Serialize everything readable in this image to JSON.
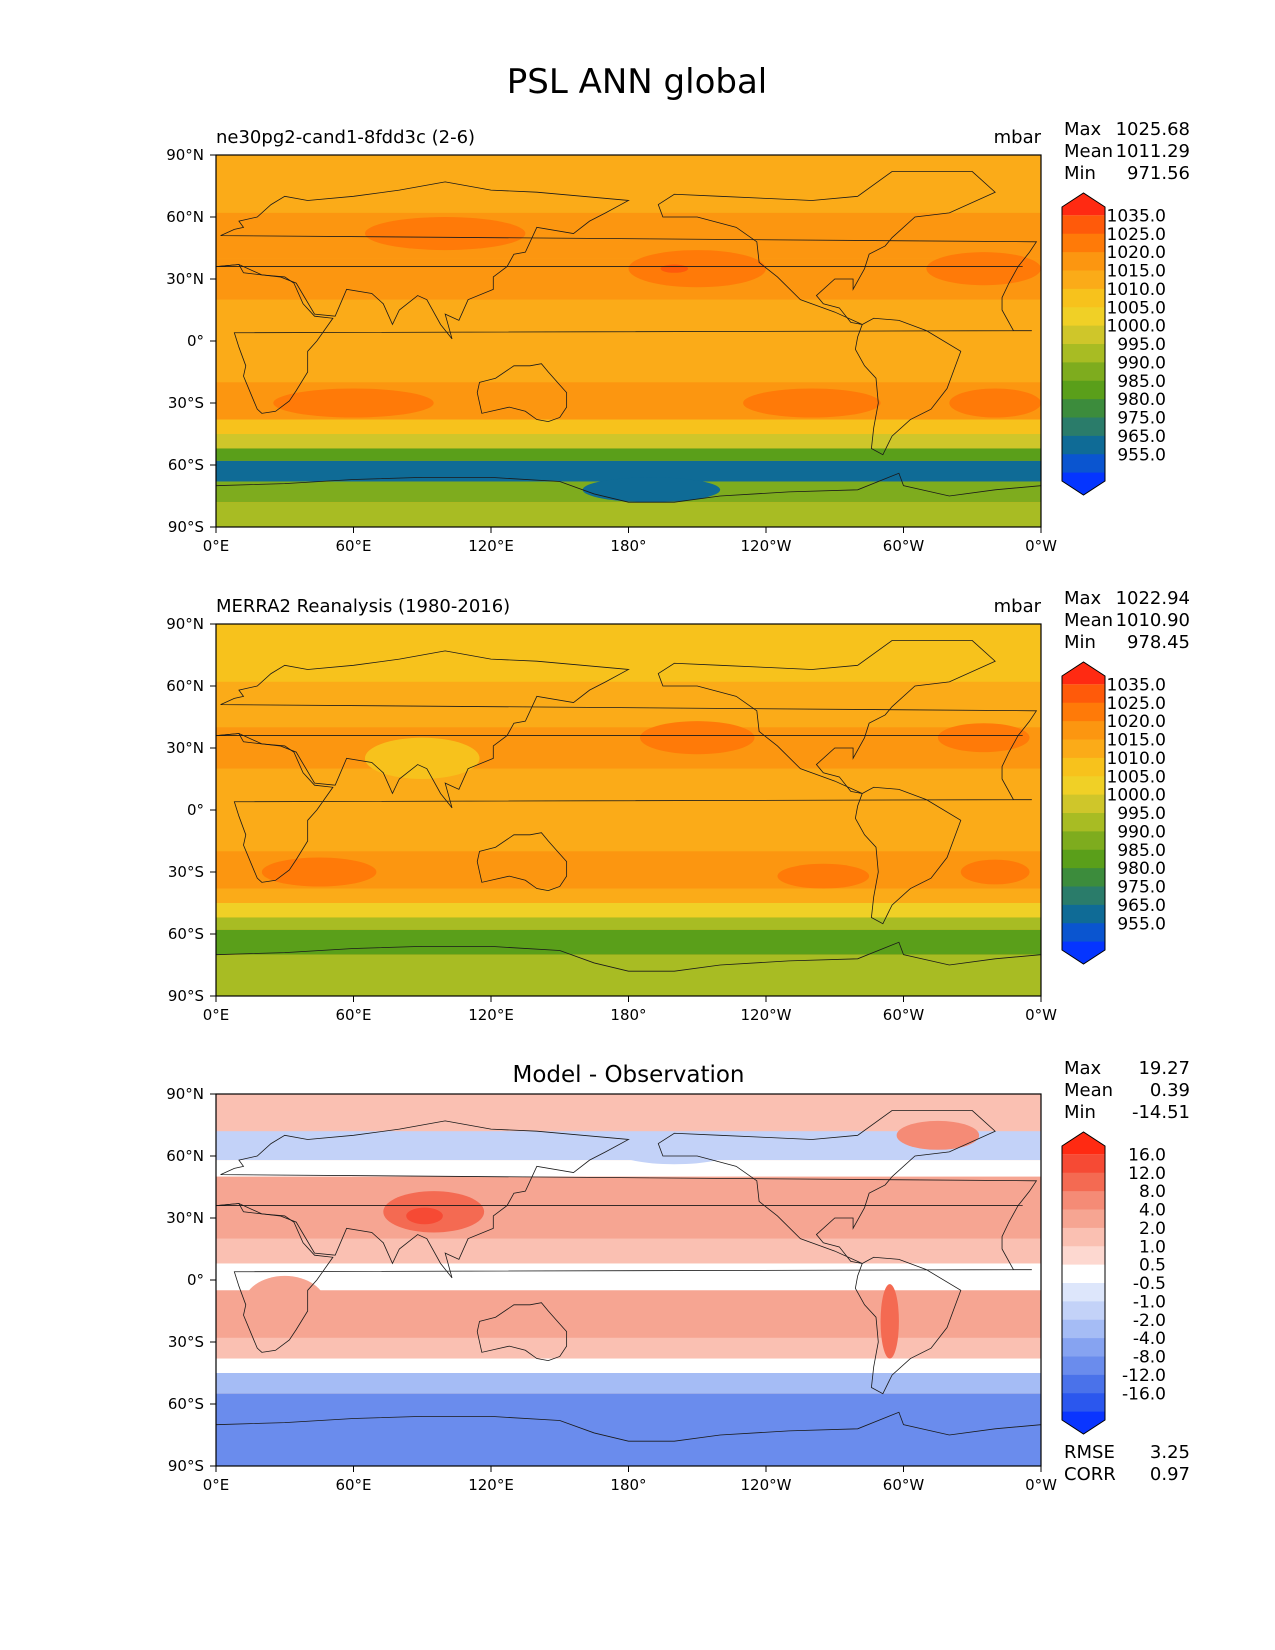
{
  "figure_title": "PSL ANN global",
  "chart_data": [
    {
      "type": "heatmap",
      "name": "test",
      "title": "",
      "left_label": "ne30pg2-cand1-8fdd3c (2-6)",
      "units": "mbar",
      "stats": [
        {
          "label": "Max",
          "value": "1025.68"
        },
        {
          "label": "Mean",
          "value": "1011.29"
        },
        {
          "label": "Min",
          "value": "971.56"
        }
      ],
      "levels": [
        "1035.0",
        "1025.0",
        "1020.0",
        "1015.0",
        "1010.0",
        "1005.0",
        "1000.0",
        "995.0",
        "990.0",
        "985.0",
        "980.0",
        "975.0",
        "965.0",
        "955.0"
      ],
      "colors": [
        "#ff2a12",
        "#ff5a0a",
        "#ff7a08",
        "#fc9610",
        "#fbab18",
        "#f7c21c",
        "#f0d026",
        "#cfc62a",
        "#a8bc23",
        "#7eac1e",
        "#5a9f1a",
        "#3c8c3c",
        "#2a7c6a",
        "#0f6b96",
        "#0a55d0",
        "#0535ff"
      ],
      "colorbar_extend": "both",
      "lat_ticks": [
        "90°N",
        "60°N",
        "30°N",
        "0°",
        "30°S",
        "60°S",
        "90°S"
      ],
      "lon_ticks": [
        "0°E",
        "60°E",
        "120°E",
        "180°",
        "120°W",
        "60°W",
        "0°W"
      ],
      "lat_range": [
        -90,
        90
      ],
      "lon_range": [
        0,
        360
      ],
      "base_color": "#fbab18",
      "footer": []
    },
    {
      "type": "heatmap",
      "name": "reference",
      "title": "",
      "left_label": "MERRA2 Reanalysis (1980-2016)",
      "units": "mbar",
      "stats": [
        {
          "label": "Max",
          "value": "1022.94"
        },
        {
          "label": "Mean",
          "value": "1010.90"
        },
        {
          "label": "Min",
          "value": "978.45"
        }
      ],
      "levels": [
        "1035.0",
        "1025.0",
        "1020.0",
        "1015.0",
        "1010.0",
        "1005.0",
        "1000.0",
        "995.0",
        "990.0",
        "985.0",
        "980.0",
        "975.0",
        "965.0",
        "955.0"
      ],
      "colors": [
        "#ff2a12",
        "#ff5a0a",
        "#ff7a08",
        "#fc9610",
        "#fbab18",
        "#f7c21c",
        "#f0d026",
        "#cfc62a",
        "#a8bc23",
        "#7eac1e",
        "#5a9f1a",
        "#3c8c3c",
        "#2a7c6a",
        "#0f6b96",
        "#0a55d0",
        "#0535ff"
      ],
      "colorbar_extend": "both",
      "lat_ticks": [
        "90°N",
        "60°N",
        "30°N",
        "0°",
        "30°S",
        "60°S",
        "90°S"
      ],
      "lon_ticks": [
        "0°E",
        "60°E",
        "120°E",
        "180°",
        "120°W",
        "60°W",
        "0°W"
      ],
      "lat_range": [
        -90,
        90
      ],
      "lon_range": [
        0,
        360
      ],
      "base_color": "#fbab18",
      "footer": []
    },
    {
      "type": "heatmap",
      "name": "diff",
      "title": "Model - Observation",
      "left_label": "",
      "units": "",
      "stats": [
        {
          "label": "Max",
          "value": "19.27"
        },
        {
          "label": "Mean",
          "value": "0.39"
        },
        {
          "label": "Min",
          "value": "-14.51"
        }
      ],
      "levels": [
        "16.0",
        "12.0",
        "8.0",
        "4.0",
        "2.0",
        "1.0",
        "0.5",
        "-0.5",
        "-1.0",
        "-2.0",
        "-4.0",
        "-8.0",
        "-12.0",
        "-16.0"
      ],
      "colors": [
        "#ff2a12",
        "#f64a34",
        "#f46a52",
        "#f58b76",
        "#f6a592",
        "#fac0b2",
        "#fdd8d0",
        "#ffffff",
        "#dde6fb",
        "#c3d2f8",
        "#a5bcf5",
        "#86a3f1",
        "#6a8ced",
        "#4a72ea",
        "#2b57ee",
        "#0a35ff"
      ],
      "colorbar_extend": "both",
      "lat_ticks": [
        "90°N",
        "60°N",
        "30°N",
        "0°",
        "30°S",
        "60°S",
        "90°S"
      ],
      "lon_ticks": [
        "0°E",
        "60°E",
        "120°E",
        "180°",
        "120°W",
        "60°W",
        "0°W"
      ],
      "lat_range": [
        -90,
        90
      ],
      "lon_range": [
        0,
        360
      ],
      "base_color": "#fac0b2",
      "footer": [
        {
          "label": "RMSE",
          "value": "3.25"
        },
        {
          "label": "CORR",
          "value": "0.97"
        }
      ]
    }
  ]
}
